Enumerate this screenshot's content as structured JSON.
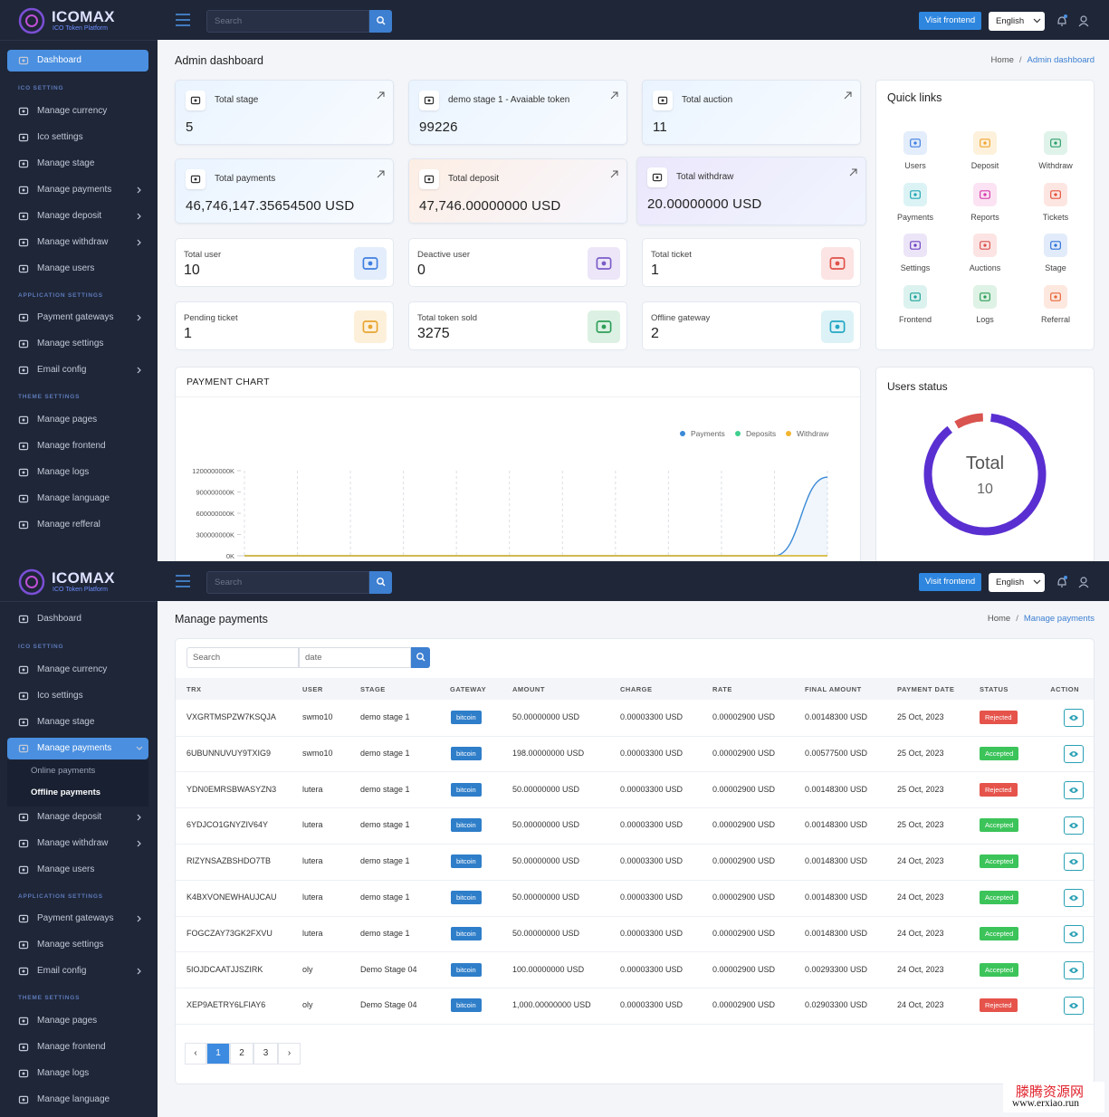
{
  "dashboard_screen": {
    "brand": {
      "name": "ICOMAX",
      "tagline": "ICO Token Platform"
    },
    "sidebar": {
      "top": [
        {
          "label": "Dashboard",
          "active": true
        }
      ],
      "sections": [
        {
          "title": "ICO SETTING",
          "items": [
            {
              "label": "Manage currency"
            },
            {
              "label": "Ico settings"
            },
            {
              "label": "Manage stage"
            },
            {
              "label": "Manage payments",
              "submenu": true
            },
            {
              "label": "Manage deposit",
              "submenu": true
            },
            {
              "label": "Manage withdraw",
              "submenu": true
            },
            {
              "label": "Manage users"
            }
          ]
        },
        {
          "title": "APPLICATION SETTINGS",
          "items": [
            {
              "label": "Payment gateways",
              "submenu": true
            },
            {
              "label": "Manage settings"
            },
            {
              "label": "Email config",
              "submenu": true
            }
          ]
        },
        {
          "title": "THEME SETTINGS",
          "items": [
            {
              "label": "Manage pages"
            },
            {
              "label": "Manage frontend"
            },
            {
              "label": "Manage logs"
            },
            {
              "label": "Manage language"
            },
            {
              "label": "Manage refferal"
            }
          ]
        }
      ]
    },
    "topbar": {
      "search_placeholder": "Search",
      "visit_button": "Visit frontend",
      "language": "English"
    },
    "page_title": "Admin dashboard",
    "breadcrumb": [
      "Home",
      "Admin dashboard"
    ],
    "feature_cards": [
      {
        "label": "Total stage",
        "value": "5"
      },
      {
        "label": "demo stage 1 - Avaiable token",
        "value": "99226"
      },
      {
        "label": "Total auction",
        "value": "11"
      },
      {
        "label": "Total payments",
        "value": "46,746,147.35654500 USD"
      },
      {
        "label": "Total deposit",
        "value": "47,746.00000000 USD"
      },
      {
        "label": "Total withdraw",
        "value": "20.00000000 USD"
      }
    ],
    "stat_cards": [
      {
        "label": "Total user",
        "value": "10",
        "color": "#3f7fe0",
        "bg": "#e3edfb"
      },
      {
        "label": "Deactive user",
        "value": "0",
        "color": "#7b5cc7",
        "bg": "#ece6f8"
      },
      {
        "label": "Total ticket",
        "value": "1",
        "color": "#e0524a",
        "bg": "#fbe4e3"
      },
      {
        "label": "Pending ticket",
        "value": "1",
        "color": "#e8a530",
        "bg": "#fdf0da"
      },
      {
        "label": "Total token sold",
        "value": "3275",
        "color": "#2e9e58",
        "bg": "#dcf1e3"
      },
      {
        "label": "Offline gateway",
        "value": "2",
        "color": "#22a6c3",
        "bg": "#dcf2f6"
      }
    ],
    "quick_links": {
      "title": "Quick links",
      "items": [
        {
          "label": "Users",
          "color": "#3f7fe0",
          "bg": "#e3edfb"
        },
        {
          "label": "Deposit",
          "color": "#f0a530",
          "bg": "#fdf1dc"
        },
        {
          "label": "Withdraw",
          "color": "#2f9e6b",
          "bg": "#dff3ea"
        },
        {
          "label": "Payments",
          "color": "#22a6b3",
          "bg": "#dcf3f5"
        },
        {
          "label": "Reports",
          "color": "#d63cab",
          "bg": "#fbe3f3"
        },
        {
          "label": "Tickets",
          "color": "#e5533d",
          "bg": "#fde6e2"
        },
        {
          "label": "Settings",
          "color": "#6f42c1",
          "bg": "#ece5f8"
        },
        {
          "label": "Auctions",
          "color": "#d9534f",
          "bg": "#fbe4e3"
        },
        {
          "label": "Stage",
          "color": "#2f73d8",
          "bg": "#e1ebfa"
        },
        {
          "label": "Frontend",
          "color": "#1fa39a",
          "bg": "#dcf2ef"
        },
        {
          "label": "Logs",
          "color": "#2e9e58",
          "bg": "#def2e5"
        },
        {
          "label": "Referral",
          "color": "#e8673b",
          "bg": "#fde8df"
        }
      ]
    },
    "payment_chart": {
      "type": "line",
      "title": "PAYMENT CHART",
      "categories": [
        null,
        null,
        null,
        null,
        null,
        null,
        null,
        null,
        null,
        null,
        null,
        null
      ],
      "series": [
        {
          "name": "Payments",
          "color": "#3a8ad6",
          "values": [
            0,
            0,
            0,
            0,
            0,
            0,
            0,
            0,
            0,
            0,
            0,
            1110000000
          ]
        },
        {
          "name": "Deposits",
          "color": "#3ecf8e",
          "values": [
            0,
            0,
            0,
            0,
            0,
            0,
            0,
            0,
            0,
            0,
            0,
            0
          ]
        },
        {
          "name": "Withdraw",
          "color": "#f2b530",
          "values": [
            0,
            0,
            0,
            0,
            0,
            0,
            0,
            0,
            0,
            0,
            0,
            0
          ]
        }
      ],
      "ylim": [
        0,
        1200000000
      ],
      "yticks": [
        {
          "value": 0,
          "label": "0K"
        },
        {
          "value": 300000000,
          "label": "300000000K"
        },
        {
          "value": 600000000,
          "label": "600000000K"
        },
        {
          "value": 900000000,
          "label": "900000000K"
        },
        {
          "value": 1200000000,
          "label": "1200000000K"
        }
      ],
      "grid": true
    },
    "users_status": {
      "title": "Users status",
      "center_label": "Total",
      "center_value": "10",
      "values": [
        1,
        9
      ],
      "colors": [
        "#d9534f",
        "#5a2fd1"
      ]
    }
  },
  "payments_screen": {
    "brand": {
      "name": "ICOMAX",
      "tagline": "ICO Token Platform"
    },
    "sidebar": {
      "top": [
        {
          "label": "Dashboard"
        }
      ],
      "sections": [
        {
          "title": "ICO SETTING",
          "items": [
            {
              "label": "Manage currency"
            },
            {
              "label": "Ico settings"
            },
            {
              "label": "Manage stage"
            },
            {
              "label": "Manage payments",
              "submenu": true,
              "active": true,
              "expanded": true,
              "children": [
                {
                  "label": "Online payments"
                },
                {
                  "label": "Offline payments",
                  "active": true
                }
              ]
            },
            {
              "label": "Manage deposit",
              "submenu": true
            },
            {
              "label": "Manage withdraw",
              "submenu": true
            },
            {
              "label": "Manage users"
            }
          ]
        },
        {
          "title": "APPLICATION SETTINGS",
          "items": [
            {
              "label": "Payment gateways",
              "submenu": true
            },
            {
              "label": "Manage settings"
            },
            {
              "label": "Email config",
              "submenu": true
            }
          ]
        },
        {
          "title": "THEME SETTINGS",
          "items": [
            {
              "label": "Manage pages"
            },
            {
              "label": "Manage frontend"
            },
            {
              "label": "Manage logs"
            },
            {
              "label": "Manage language"
            }
          ]
        }
      ]
    },
    "topbar": {
      "search_placeholder": "Search",
      "visit_button": "Visit frontend",
      "language": "English"
    },
    "page_title": "Manage payments",
    "breadcrumb": [
      "Home",
      "Manage payments"
    ],
    "filters": {
      "search_placeholder": "Search",
      "date_placeholder": "date"
    },
    "table": {
      "columns": [
        "TRX",
        "USER",
        "STAGE",
        "GATEWAY",
        "AMOUNT",
        "CHARGE",
        "RATE",
        "FINAL AMOUNT",
        "PAYMENT DATE",
        "STATUS",
        "ACTION"
      ],
      "rows": [
        [
          "VXGRTMSPZW7KSQJA",
          "swmo10",
          "demo stage 1",
          "bitcoin",
          "50.00000000 USD",
          "0.00003300 USD",
          "0.00002900 USD",
          "0.00148300 USD",
          "25 Oct, 2023",
          "Rejected"
        ],
        [
          "6UBUNNUVUY9TXIG9",
          "swmo10",
          "demo stage 1",
          "bitcoin",
          "198.00000000 USD",
          "0.00003300 USD",
          "0.00002900 USD",
          "0.00577500 USD",
          "25 Oct, 2023",
          "Accepted"
        ],
        [
          "YDN0EMRSBWASYZN3",
          "lutera",
          "demo stage 1",
          "bitcoin",
          "50.00000000 USD",
          "0.00003300 USD",
          "0.00002900 USD",
          "0.00148300 USD",
          "25 Oct, 2023",
          "Rejected"
        ],
        [
          "6YDJCO1GNYZIV64Y",
          "lutera",
          "demo stage 1",
          "bitcoin",
          "50.00000000 USD",
          "0.00003300 USD",
          "0.00002900 USD",
          "0.00148300 USD",
          "25 Oct, 2023",
          "Accepted"
        ],
        [
          "RIZYNSAZBSHDO7TB",
          "lutera",
          "demo stage 1",
          "bitcoin",
          "50.00000000 USD",
          "0.00003300 USD",
          "0.00002900 USD",
          "0.00148300 USD",
          "24 Oct, 2023",
          "Accepted"
        ],
        [
          "K4BXVONEWHAUJCAU",
          "lutera",
          "demo stage 1",
          "bitcoin",
          "50.00000000 USD",
          "0.00003300 USD",
          "0.00002900 USD",
          "0.00148300 USD",
          "24 Oct, 2023",
          "Accepted"
        ],
        [
          "FOGCZAY73GK2FXVU",
          "lutera",
          "demo stage 1",
          "bitcoin",
          "50.00000000 USD",
          "0.00003300 USD",
          "0.00002900 USD",
          "0.00148300 USD",
          "24 Oct, 2023",
          "Accepted"
        ],
        [
          "5IOJDCAATJJSZIRK",
          "oly",
          "Demo Stage 04",
          "bitcoin",
          "100.00000000 USD",
          "0.00003300 USD",
          "0.00002900 USD",
          "0.00293300 USD",
          "24 Oct, 2023",
          "Accepted"
        ],
        [
          "XEP9AETRY6LFIAY6",
          "oly",
          "Demo Stage 04",
          "bitcoin",
          "1,000.00000000 USD",
          "0.00003300 USD",
          "0.00002900 USD",
          "0.02903300 USD",
          "24 Oct, 2023",
          "Rejected"
        ]
      ]
    },
    "pagination": [
      "‹",
      "1",
      "2",
      "3",
      "›"
    ],
    "current_page": "1"
  },
  "watermark": [
    "滕腾资源网",
    "www.erxiao.run"
  ]
}
